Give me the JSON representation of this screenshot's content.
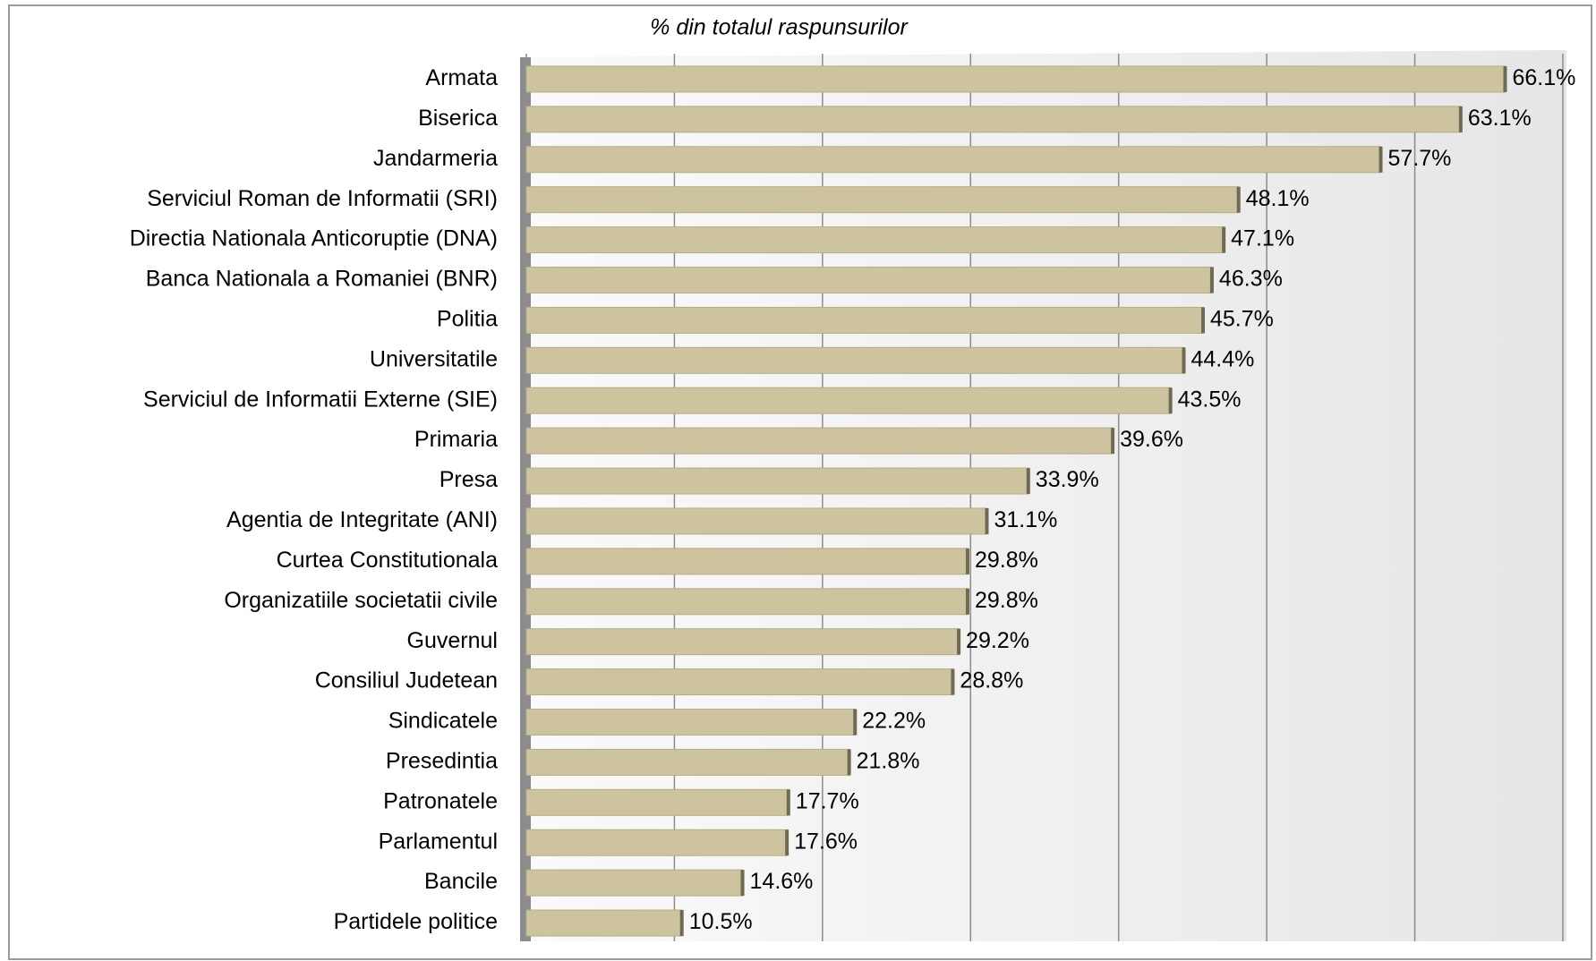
{
  "chart_data": {
    "type": "bar",
    "orientation": "horizontal",
    "title": "% din totalul raspunsurilor",
    "categories": [
      "Armata",
      "Biserica",
      "Jandarmeria",
      "Serviciul Roman de Informatii (SRI)",
      "Directia Nationala Anticoruptie (DNA)",
      "Banca Nationala a Romaniei (BNR)",
      "Politia",
      "Universitatile",
      "Serviciul de Informatii Externe (SIE)",
      "Primaria",
      "Presa",
      "Agentia de Integritate (ANI)",
      "Curtea Constitutionala",
      "Organizatiile societatii civile",
      "Guvernul",
      "Consiliul Judetean",
      "Sindicatele",
      "Presedintia",
      "Patronatele",
      "Parlamentul",
      "Bancile",
      "Partidele politice"
    ],
    "values": [
      66.1,
      63.1,
      57.7,
      48.1,
      47.1,
      46.3,
      45.7,
      44.4,
      43.5,
      39.6,
      33.9,
      31.1,
      29.8,
      29.8,
      29.2,
      28.8,
      22.2,
      21.8,
      17.7,
      17.6,
      14.6,
      10.5
    ],
    "value_labels": [
      "66.1%",
      "63.1%",
      "57.7%",
      "48.1%",
      "47.1%",
      "46.3%",
      "45.7%",
      "44.4%",
      "43.5%",
      "39.6%",
      "33.9%",
      "31.1%",
      "29.8%",
      "29.8%",
      "29.2%",
      "28.8%",
      "22.2%",
      "21.8%",
      "17.7%",
      "17.6%",
      "14.6%",
      "10.5%"
    ],
    "color": "#cdc49f",
    "xlim": [
      0,
      70
    ],
    "xticks": [
      0,
      10,
      20,
      30,
      40,
      50,
      60,
      70
    ],
    "grid": true
  }
}
